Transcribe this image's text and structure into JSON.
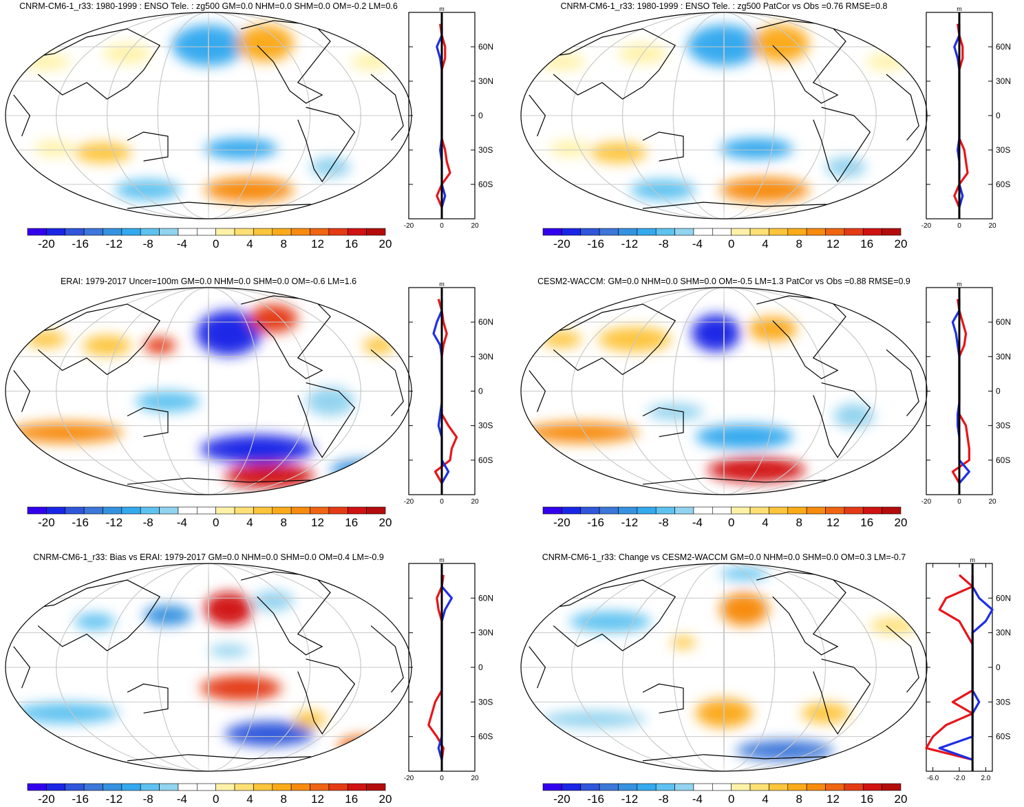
{
  "figure": {
    "colorbar": {
      "colors": [
        "#3300ee",
        "#1a26e6",
        "#2f56db",
        "#3c77d9",
        "#3592e0",
        "#34a9ee",
        "#5ec2f0",
        "#92d3ef",
        "#ffffff",
        "#ffffff",
        "#fff2a8",
        "#fee075",
        "#fdc53c",
        "#fbab1a",
        "#f78b0e",
        "#ef6511",
        "#e43b14",
        "#d11212",
        "#b40c0c"
      ],
      "tick_labels": [
        "-20",
        "-16",
        "-12",
        "-8",
        "-4",
        "0",
        "4",
        "8",
        "12",
        "16",
        "20"
      ]
    },
    "lat_labels": [
      "60N",
      "30N",
      "0",
      "30S",
      "60S"
    ],
    "panels": [
      {
        "title": "CNRM-CM6-1_r33: 1980-1999 : ENSO Tele. : zg500 GM=0.0 NHM=0.0 SHM=0.0 OM=-0.2 LM=0.6",
        "profile_unit": "m",
        "profile_x_ticks": [
          "-20",
          "0",
          "20"
        ],
        "profile_xlim": [
          -20,
          20
        ],
        "chart_data": {
          "type": "line",
          "lat": [
            80,
            70,
            60,
            50,
            40,
            30,
            20,
            10,
            0,
            -10,
            -20,
            -30,
            -40,
            -50,
            -60,
            -70,
            -80
          ],
          "series": [
            {
              "color": "#e8141a",
              "values": [
                -1,
                0,
                2,
                2,
                0,
                0,
                0,
                0,
                0,
                0,
                0,
                2,
                3,
                5,
                0,
                -3,
                0
              ]
            },
            {
              "color": "#1e2ee6",
              "values": [
                0,
                0,
                -3,
                -1,
                0,
                0,
                0,
                0,
                0,
                0,
                0,
                -1,
                0,
                0,
                0,
                2,
                0
              ]
            }
          ]
        }
      },
      {
        "title": "CNRM-CM6-1_r33: 1980-1999 : ENSO Tele. : zg500 PatCor vs Obs =0.76 RMSE=0.8",
        "profile_unit": "m",
        "profile_x_ticks": [
          "-20",
          "0",
          "20"
        ],
        "profile_xlim": [
          -20,
          20
        ],
        "chart_data": {
          "type": "line",
          "lat": [
            80,
            70,
            60,
            50,
            40,
            30,
            20,
            10,
            0,
            -10,
            -20,
            -30,
            -40,
            -50,
            -60,
            -70,
            -80
          ],
          "series": [
            {
              "color": "#e8141a",
              "values": [
                -1,
                0,
                2,
                2,
                0,
                0,
                0,
                0,
                0,
                0,
                0,
                3,
                4,
                5,
                0,
                -3,
                0
              ]
            },
            {
              "color": "#1e2ee6",
              "values": [
                0,
                0,
                -3,
                -1,
                0,
                0,
                0,
                0,
                0,
                0,
                0,
                -1,
                0,
                0,
                0,
                2,
                0
              ]
            }
          ]
        }
      },
      {
        "title": "ERAI: 1979-2017 Uncer=100m GM=0.0 NHM=0.0 SHM=0.0 OM=-0.6 LM=1.6",
        "profile_unit": "m",
        "profile_x_ticks": [
          "-20",
          "0",
          "20"
        ],
        "profile_xlim": [
          -20,
          20
        ],
        "chart_data": {
          "type": "line",
          "lat": [
            80,
            70,
            60,
            50,
            40,
            30,
            20,
            10,
            0,
            -10,
            -20,
            -30,
            -40,
            -50,
            -60,
            -70,
            -80
          ],
          "series": [
            {
              "color": "#e8141a",
              "values": [
                -2,
                0,
                1,
                3,
                1,
                0,
                0,
                0,
                0,
                0,
                0,
                4,
                9,
                6,
                5,
                -4,
                0
              ]
            },
            {
              "color": "#1e2ee6",
              "values": [
                0,
                0,
                -3,
                -5,
                -1,
                0,
                0,
                0,
                0,
                0,
                -1,
                -2,
                0,
                0,
                0,
                4,
                0
              ]
            }
          ]
        }
      },
      {
        "title": "CESM2-WACCM: GM=0.0 NHM=0.0 SHM=0.0 OM=-0.5 LM=1.3 PatCor vs Obs =0.88 RMSE=0.9",
        "profile_unit": "m",
        "profile_x_ticks": [
          "-20",
          "0",
          "20"
        ],
        "profile_xlim": [
          -20,
          20
        ],
        "chart_data": {
          "type": "line",
          "lat": [
            80,
            70,
            60,
            50,
            40,
            30,
            20,
            10,
            0,
            -10,
            -20,
            -30,
            -40,
            -50,
            -60,
            -70,
            -80
          ],
          "series": [
            {
              "color": "#e8141a",
              "values": [
                -1,
                0,
                2,
                4,
                3,
                0,
                0,
                0,
                0,
                0,
                0,
                4,
                5,
                6,
                6,
                -4,
                0
              ]
            },
            {
              "color": "#1e2ee6",
              "values": [
                0,
                0,
                -4,
                -2,
                -1,
                0,
                0,
                0,
                0,
                0,
                -1,
                -1,
                0,
                0,
                0,
                6,
                0
              ]
            }
          ]
        }
      },
      {
        "title": "CNRM-CM6-1_r33: Bias vs ERAI: 1979-2017 GM=0.0 NHM=0.0 SHM=0.0 OM=0.4 LM=-0.9",
        "profile_unit": "m",
        "profile_x_ticks": [
          "-20",
          "0",
          "20"
        ],
        "profile_xlim": [
          -20,
          20
        ],
        "chart_data": {
          "type": "line",
          "lat": [
            80,
            70,
            60,
            50,
            40,
            30,
            20,
            10,
            0,
            -10,
            -20,
            -30,
            -40,
            -50,
            -60,
            -70,
            -80
          ],
          "series": [
            {
              "color": "#e8141a",
              "values": [
                1,
                0,
                -3,
                -2,
                0,
                0,
                0,
                0,
                0,
                0,
                0,
                -4,
                -6,
                -8,
                -3,
                1,
                0
              ]
            },
            {
              "color": "#1e2ee6",
              "values": [
                0,
                0,
                6,
                2,
                0,
                0,
                0,
                0,
                0,
                0,
                0,
                0,
                0,
                0,
                0,
                -2,
                0
              ]
            }
          ]
        }
      },
      {
        "title": "CNRM-CM6-1_r33: Change vs CESM2-WACCM GM=0.0 NHM=0.0 SHM=0.0 OM=0.3 LM=-0.7",
        "profile_unit": "m",
        "profile_x_ticks": [
          "-6.0",
          "-2.0",
          "2.0"
        ],
        "profile_xlim": [
          -7,
          3
        ],
        "chart_data": {
          "type": "line",
          "lat": [
            80,
            70,
            60,
            50,
            40,
            30,
            20,
            10,
            0,
            -10,
            -20,
            -30,
            -40,
            -50,
            -60,
            -70,
            -80
          ],
          "series": [
            {
              "color": "#e8141a",
              "values": [
                -2,
                0,
                -4,
                -5,
                -2,
                -1,
                0,
                0,
                0,
                0,
                0,
                -3,
                0,
                -4,
                -6,
                -7,
                0
              ]
            },
            {
              "color": "#1e2ee6",
              "values": [
                0,
                0,
                1,
                3,
                2,
                0,
                0,
                0,
                0,
                0,
                0,
                1,
                0,
                0,
                0,
                -5,
                0
              ]
            }
          ]
        }
      }
    ]
  }
}
